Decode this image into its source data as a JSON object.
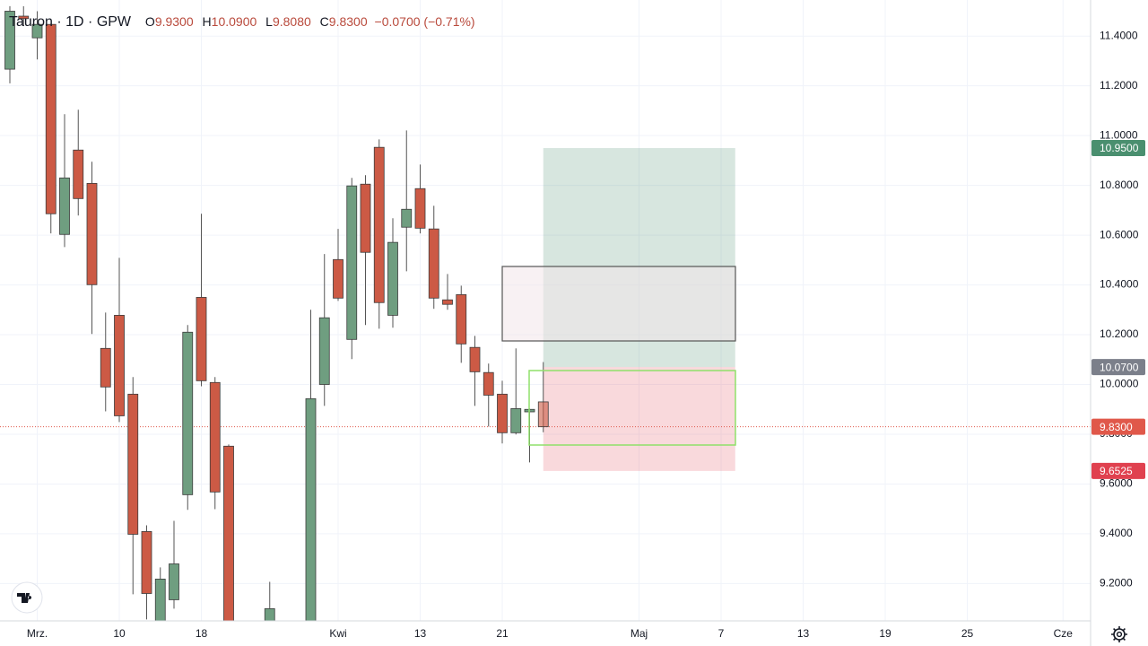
{
  "chart_data": {
    "type": "candlestick",
    "title": "Tauron · 1D · GPW",
    "ohlc_legend": [
      [
        "O",
        "9.9300"
      ],
      [
        "H",
        "10.0900"
      ],
      [
        "L",
        "9.8080"
      ],
      [
        "C",
        "9.8300"
      ]
    ],
    "change": "−0.0700 (−0.71%)",
    "up_color": "#6f9e80",
    "down_color": "#cc5a45",
    "categories": [
      null,
      null,
      "Mrz.",
      null,
      null,
      null,
      null,
      null,
      "10",
      null,
      null,
      null,
      null,
      null,
      "18",
      null,
      null,
      null,
      null,
      null,
      null,
      null,
      null,
      null,
      "Kwi",
      null,
      null,
      null,
      null,
      null,
      "13",
      null,
      null,
      null,
      null,
      null,
      "21",
      null,
      null,
      null,
      null,
      null,
      null,
      null,
      null,
      null,
      "Maj",
      null,
      null,
      null,
      null,
      null,
      "7",
      null,
      null,
      null,
      null,
      null,
      "13",
      null,
      null,
      null,
      null,
      null,
      "19",
      null,
      null,
      null,
      null,
      null,
      "25",
      null,
      null,
      null,
      null,
      null,
      null,
      "Cze",
      null,
      null
    ],
    "open": [
      11.267,
      11.48,
      11.393,
      11.447,
      10.603,
      10.942,
      10.808,
      10.145,
      10.278,
      9.961,
      9.409,
      9.03,
      9.135,
      9.557,
      10.35,
      10.008,
      9.752,
      null,
      null,
      9.0,
      null,
      null,
      8.98,
      10.0,
      10.502,
      10.181,
      10.805,
      10.953,
      10.278,
      10.632,
      10.787,
      10.625,
      10.34,
      10.361,
      10.149,
      10.048,
      9.961,
      9.806,
      9.89,
      9.93,
      null,
      null,
      null,
      null,
      null,
      null,
      null,
      null,
      null,
      null,
      null,
      null,
      null,
      null,
      null,
      null,
      null,
      null,
      null,
      null,
      null,
      null,
      null,
      null,
      null,
      null,
      null,
      null,
      null,
      null,
      null,
      null,
      null,
      null,
      null,
      null,
      null,
      null,
      null,
      null
    ],
    "high": [
      11.52,
      11.52,
      11.5,
      11.45,
      11.086,
      11.104,
      10.895,
      10.289,
      10.509,
      10.03,
      9.434,
      9.265,
      9.452,
      10.239,
      10.686,
      10.03,
      9.759,
      null,
      null,
      9.207,
      null,
      null,
      10.3,
      10.524,
      10.625,
      10.83,
      10.841,
      10.985,
      10.668,
      11.021,
      10.884,
      10.718,
      10.444,
      10.397,
      10.195,
      10.084,
      10.015,
      10.145,
      9.903,
      10.09,
      null,
      null,
      null,
      null,
      null,
      null,
      null,
      null,
      null,
      null,
      null,
      null,
      null,
      null,
      null,
      null,
      null,
      null,
      null,
      null,
      null,
      null,
      null,
      null,
      null,
      null,
      null,
      null,
      null,
      null,
      null,
      null,
      null,
      null,
      null,
      null,
      null,
      null,
      null,
      null
    ],
    "low": [
      11.21,
      11.44,
      11.306,
      10.607,
      10.552,
      10.679,
      10.203,
      9.892,
      9.849,
      9.157,
      9.056,
      9.0,
      9.099,
      9.496,
      9.993,
      9.499,
      8.95,
      null,
      null,
      8.95,
      null,
      null,
      8.95,
      9.914,
      10.336,
      10.102,
      10.239,
      10.224,
      10.228,
      10.455,
      10.607,
      10.304,
      10.3,
      10.087,
      9.914,
      9.831,
      9.763,
      9.799,
      9.687,
      9.808,
      null,
      null,
      null,
      null,
      null,
      null,
      null,
      null,
      null,
      null,
      null,
      null,
      null,
      null,
      null,
      null,
      null,
      null,
      null,
      null,
      null,
      null,
      null,
      null,
      null,
      null,
      null,
      null,
      null,
      null,
      null,
      null,
      null,
      null,
      null,
      null,
      null,
      null,
      null,
      null
    ],
    "close": [
      11.5,
      11.47,
      11.447,
      10.686,
      10.83,
      10.747,
      10.401,
      9.99,
      9.874,
      9.398,
      9.16,
      9.218,
      9.279,
      10.21,
      10.015,
      9.568,
      8.98,
      null,
      null,
      9.099,
      null,
      null,
      9.943,
      10.268,
      10.347,
      10.798,
      10.531,
      10.329,
      10.571,
      10.704,
      10.628,
      10.347,
      10.322,
      10.163,
      10.051,
      9.957,
      9.806,
      9.903,
      9.9,
      9.83,
      null,
      null,
      null,
      null,
      null,
      null,
      null,
      null,
      null,
      null,
      null,
      null,
      null,
      null,
      null,
      null,
      null,
      null,
      null,
      null,
      null,
      null,
      null,
      null,
      null,
      null,
      null,
      null,
      null,
      null,
      null,
      null,
      null,
      null,
      null,
      null,
      null,
      null,
      null,
      null
    ],
    "ylim": [
      9.05,
      11.545
    ],
    "yticks": [
      {
        "value": 9.2,
        "label": "9.2000"
      },
      {
        "value": 9.4,
        "label": "9.4000"
      },
      {
        "value": 9.6,
        "label": "9.6000"
      },
      {
        "value": 9.8,
        "label": "9.8000"
      },
      {
        "value": 10.0,
        "label": "10.0000"
      },
      {
        "value": 10.2,
        "label": "10.2000"
      },
      {
        "value": 10.4,
        "label": "10.4000"
      },
      {
        "value": 10.6,
        "label": "10.6000"
      },
      {
        "value": 10.8,
        "label": "10.8000"
      },
      {
        "value": 11.0,
        "label": "11.0000"
      },
      {
        "value": 11.2,
        "label": "11.2000"
      },
      {
        "value": 11.4,
        "label": "11.4000"
      }
    ],
    "grid": true,
    "price_labels": [
      {
        "value": 10.95,
        "label": "10.9500",
        "color": "#4a8f6f"
      },
      {
        "value": 10.07,
        "label": "10.0700",
        "color": "#7b7f8a"
      },
      {
        "value": 9.83,
        "label": "9.8300",
        "color": "#e0584a"
      },
      {
        "value": 9.6525,
        "label": "9.6525",
        "color": "#e0414f"
      }
    ]
  }
}
